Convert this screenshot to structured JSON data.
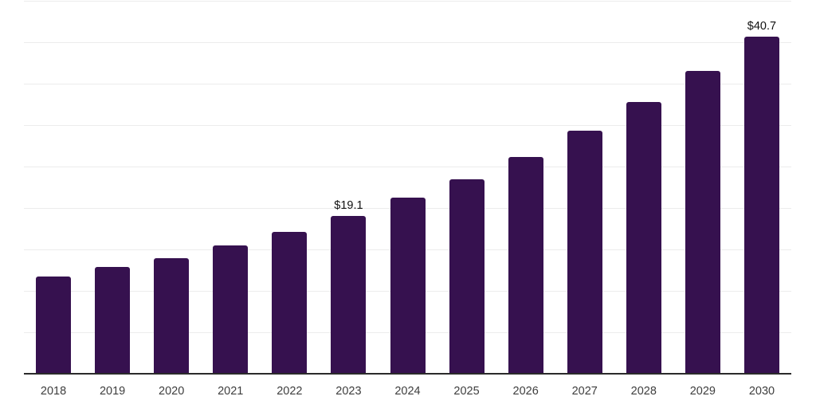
{
  "chart_data": {
    "type": "bar",
    "categories": [
      "2018",
      "2019",
      "2020",
      "2021",
      "2022",
      "2023",
      "2024",
      "2025",
      "2026",
      "2027",
      "2028",
      "2029",
      "2030"
    ],
    "values": [
      11.8,
      12.9,
      14.0,
      15.5,
      17.2,
      19.1,
      21.3,
      23.5,
      26.2,
      29.4,
      32.8,
      36.6,
      40.7
    ],
    "data_labels": [
      "",
      "",
      "",
      "",
      "",
      "$19.1",
      "",
      "",
      "",
      "",
      "",
      "",
      "$40.7"
    ],
    "value_prefix": "$",
    "title": "",
    "xlabel": "",
    "ylabel": "",
    "ylim": [
      0,
      45
    ],
    "gridline_step": 5,
    "grid": "horizontal-only",
    "y_tick_labels_visible": false,
    "legend": "none",
    "labeled_bars": [
      "2023",
      "2030"
    ]
  },
  "colors": {
    "bar": "#36114F",
    "gridline": "#ECECEC",
    "axis_line": "#2B2B2B",
    "tick_label": "#3E3E3E",
    "value_label": "#111111",
    "background": "#FFFFFF"
  }
}
